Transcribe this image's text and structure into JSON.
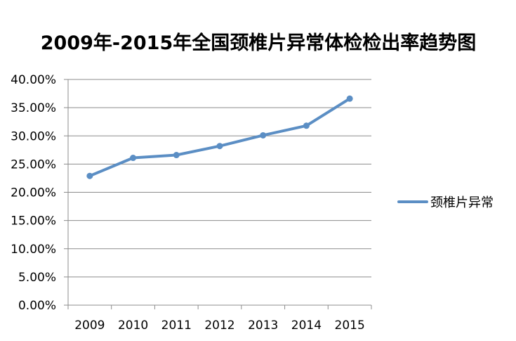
{
  "chart_data": {
    "type": "line",
    "title": "2009年-2015年全国颈椎片异常体检检出率趋势图",
    "categories": [
      "2009",
      "2010",
      "2011",
      "2012",
      "2013",
      "2014",
      "2015"
    ],
    "series": [
      {
        "name": "颈椎片异常",
        "values": [
          22.9,
          26.1,
          26.6,
          28.2,
          30.1,
          31.8,
          36.6
        ],
        "color": "#5b8ec4"
      }
    ],
    "ylim": [
      0,
      40
    ],
    "yticks": [
      0,
      5,
      10,
      15,
      20,
      25,
      30,
      35,
      40
    ],
    "ytick_labels": [
      "0.00%",
      "5.00%",
      "10.00%",
      "15.00%",
      "20.00%",
      "25.00%",
      "30.00%",
      "35.00%",
      "40.00%"
    ],
    "grid": true,
    "gridline_color": "#8c8c8c",
    "legend_position": "right"
  }
}
